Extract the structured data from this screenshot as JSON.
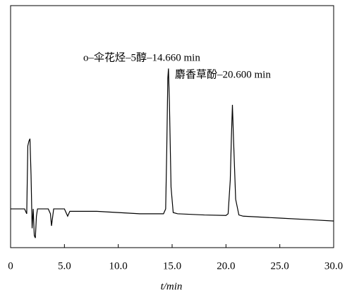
{
  "chart_data": {
    "type": "line",
    "x_label": "t/min",
    "annotations": [
      {
        "text": "o–伞花烃–5醇–14.660 min",
        "x": 14.66
      },
      {
        "text": "麝香草酚–20.600 min",
        "x": 20.6
      }
    ],
    "xlim": [
      0,
      30
    ],
    "xticks": [
      0,
      {
        "value": 5,
        "label": "5.0"
      },
      {
        "value": 10,
        "label": "10.0"
      },
      {
        "value": 15,
        "label": "15.0"
      },
      {
        "value": 20,
        "label": "20.0"
      },
      {
        "value": 25,
        "label": "25.0"
      },
      {
        "value": 30,
        "label": "30.0"
      }
    ],
    "ylim": [
      0,
      100
    ],
    "color": "#000000",
    "x": [
      0,
      1.3,
      1.5,
      1.6,
      1.7,
      1.8,
      1.9,
      2.0,
      2.1,
      2.2,
      2.3,
      2.4,
      2.5,
      2.7,
      3.0,
      3.5,
      3.7,
      3.8,
      4.0,
      4.5,
      5.0,
      5.3,
      5.5,
      6,
      8,
      10,
      12,
      14,
      14.2,
      14.4,
      14.5,
      14.6,
      14.66,
      14.75,
      14.9,
      15.1,
      15.5,
      18,
      20,
      20.2,
      20.4,
      20.5,
      20.6,
      20.7,
      20.9,
      21.2,
      21.6,
      25,
      28,
      30
    ],
    "values": [
      16,
      16,
      14,
      42,
      44,
      45,
      30,
      8,
      16,
      5,
      4,
      13,
      16,
      16,
      16,
      16,
      14,
      9,
      16,
      16,
      16,
      13,
      15,
      15,
      15,
      14.5,
      14,
      14,
      14,
      16,
      40,
      70,
      74,
      60,
      25,
      14.5,
      14,
      13.5,
      13.3,
      14,
      28,
      45,
      59,
      45,
      20,
      13.5,
      13,
      12.2,
      11.5,
      11
    ]
  }
}
